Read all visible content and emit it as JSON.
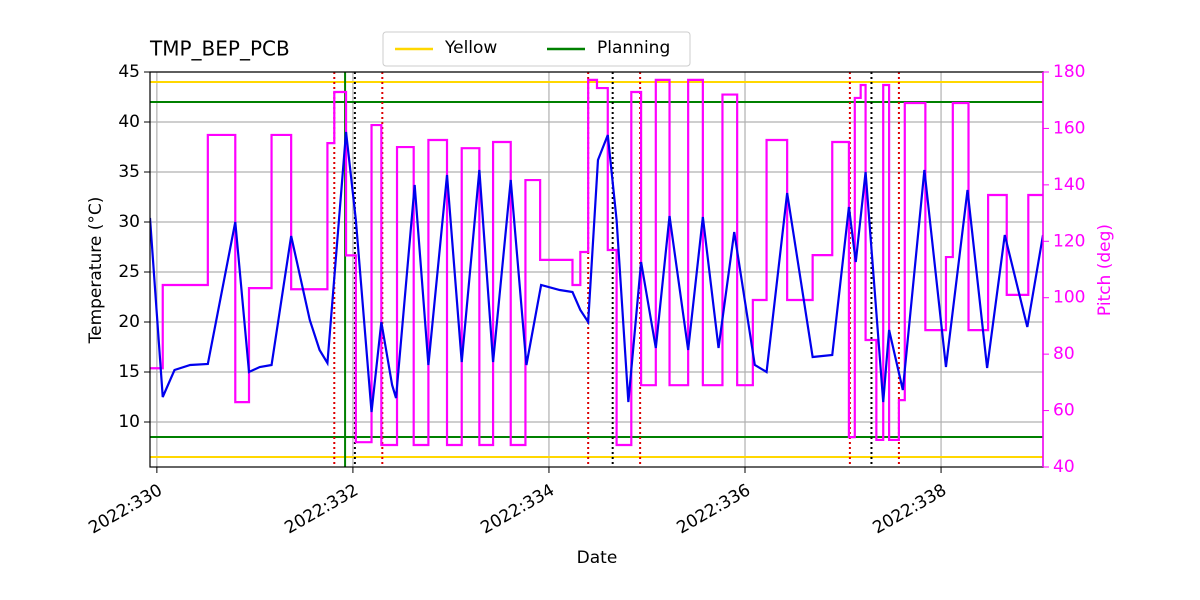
{
  "chart_data": {
    "type": "line",
    "title": "TMP_BEP_PCB",
    "xlabel": "Date",
    "ylabel": "Temperature (°C)",
    "y2label": "Pitch (deg)",
    "xlim": [
      329.93,
      339.04
    ],
    "xticks": [
      {
        "value": 330,
        "label": "2022:330"
      },
      {
        "value": 332,
        "label": "2022:332"
      },
      {
        "value": 334,
        "label": "2022:334"
      },
      {
        "value": 336,
        "label": "2022:336"
      },
      {
        "value": 338,
        "label": "2022:338"
      }
    ],
    "ylim": [
      5.5,
      45
    ],
    "yticks": [
      10,
      15,
      20,
      25,
      30,
      35,
      40,
      45
    ],
    "y2lim": [
      40,
      180
    ],
    "y2ticks": [
      40,
      60,
      80,
      100,
      120,
      140,
      160,
      180
    ],
    "grid": true,
    "legend": "upper center",
    "series": [
      {
        "color": "#0000ee",
        "axis": "y",
        "x": [
          329.93,
          330.06,
          330.18,
          330.34,
          330.52,
          330.8,
          330.94,
          331.05,
          331.17,
          331.37,
          331.56,
          331.66,
          331.74,
          331.93,
          332.03,
          332.19,
          332.29,
          332.4,
          332.44,
          332.63,
          332.77,
          332.96,
          333.11,
          333.29,
          333.43,
          333.61,
          333.77,
          333.92,
          334.11,
          334.24,
          334.32,
          334.4,
          334.5,
          334.6,
          334.69,
          334.81,
          334.94,
          335.09,
          335.23,
          335.42,
          335.57,
          335.73,
          335.89,
          336.1,
          336.22,
          336.43,
          336.69,
          336.89,
          337.06,
          337.13,
          337.23,
          337.41,
          337.47,
          337.61,
          337.83,
          338.05,
          338.27,
          338.47,
          338.65,
          338.88,
          339.04
        ],
        "values": [
          30.4,
          12.5,
          15.2,
          15.7,
          15.8,
          30.0,
          15.0,
          15.5,
          15.7,
          28.6,
          20.2,
          17.2,
          15.9,
          39.0,
          30.2,
          11.0,
          20.0,
          13.7,
          12.4,
          33.7,
          15.7,
          34.7,
          16.0,
          35.2,
          16.0,
          34.2,
          15.7,
          23.7,
          23.2,
          23.0,
          21.2,
          20.0,
          36.2,
          38.7,
          30.2,
          12.0,
          26.0,
          17.4,
          30.6,
          17.2,
          30.5,
          17.4,
          29.0,
          15.7,
          15.0,
          32.9,
          16.5,
          16.7,
          31.5,
          26.0,
          35.0,
          12.0,
          19.2,
          13.2,
          35.2,
          15.5,
          33.2,
          15.4,
          28.7,
          19.5,
          28.7
        ]
      },
      {
        "color": "#ff00ff",
        "axis": "y2",
        "drawstyle": "steps-post",
        "x": [
          329.93,
          330.06,
          330.52,
          330.8,
          330.94,
          331.17,
          331.37,
          331.74,
          331.81,
          331.93,
          332.03,
          332.19,
          332.29,
          332.45,
          332.62,
          332.77,
          332.96,
          333.11,
          333.29,
          333.43,
          333.61,
          333.76,
          333.91,
          334.24,
          334.32,
          334.4,
          334.49,
          334.6,
          334.69,
          334.84,
          334.94,
          335.09,
          335.23,
          335.42,
          335.57,
          335.77,
          335.92,
          336.08,
          336.22,
          336.43,
          336.69,
          336.89,
          337.06,
          337.12,
          337.18,
          337.23,
          337.34,
          337.41,
          337.47,
          337.57,
          337.63,
          337.84,
          338.05,
          338.12,
          338.28,
          338.48,
          338.67,
          338.89,
          339.04
        ],
        "values": [
          75,
          104.5,
          157.7,
          63,
          103.4,
          157.7,
          103,
          154.8,
          172.9,
          115,
          48.8,
          161.2,
          47.8,
          153.4,
          47.8,
          155.9,
          47.8,
          153,
          47.8,
          155.2,
          47.8,
          141.7,
          113.4,
          104.5,
          116.2,
          177.2,
          174.3,
          116.9,
          47.8,
          172.9,
          69,
          177.2,
          69,
          177.2,
          69,
          172,
          69,
          99.2,
          155.9,
          99.2,
          115.1,
          155.2,
          50.6,
          170.8,
          175.4,
          85,
          49.6,
          175.4,
          49.6,
          63.7,
          169,
          88.5,
          114.4,
          169,
          88.5,
          136.4,
          101,
          136.4,
          136.4
        ]
      }
    ],
    "hlines": [
      {
        "name": "Yellow",
        "color": "#ffd700",
        "values": [
          6.5,
          44
        ]
      },
      {
        "name": "Planning",
        "color": "#008000",
        "values": [
          8.5,
          42
        ]
      }
    ],
    "vlines": [
      {
        "color": "#008000",
        "style": "solid",
        "x": [
          331.92
        ]
      },
      {
        "color": "#000000",
        "style": "dotted",
        "x": [
          332.02,
          334.65,
          337.29
        ]
      },
      {
        "color": "#dd0000",
        "style": "dotted",
        "x": [
          331.81,
          332.3,
          334.4,
          334.93,
          337.07,
          337.57
        ]
      }
    ]
  }
}
